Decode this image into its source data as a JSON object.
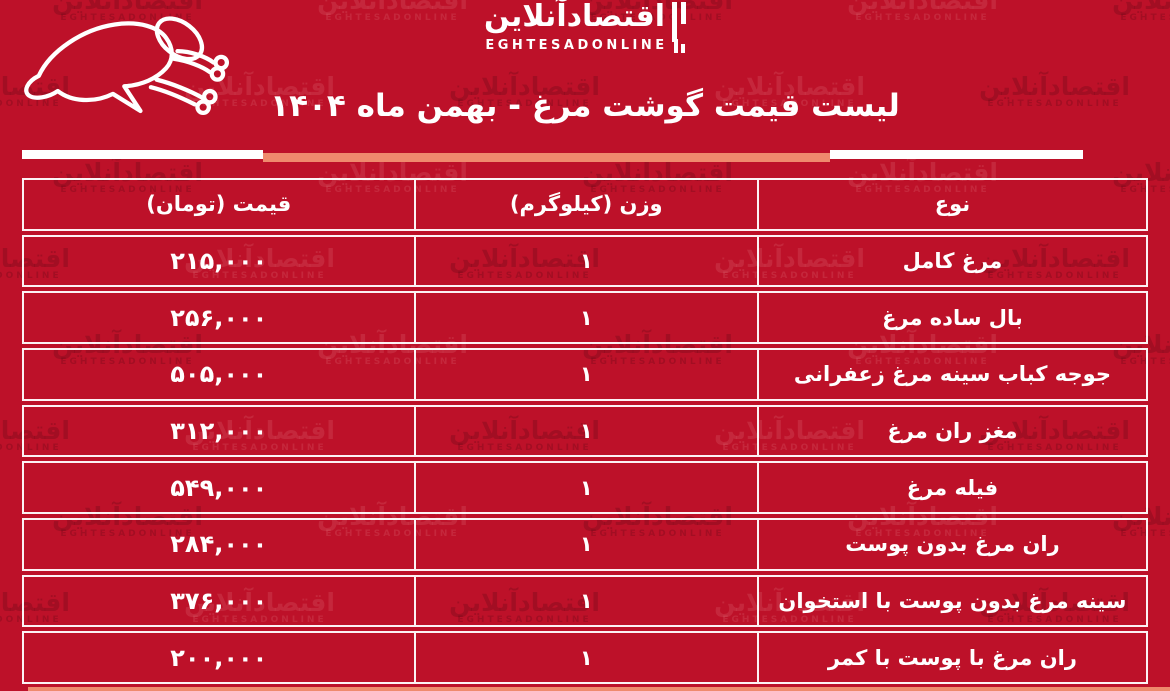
{
  "page": {
    "bg_color": "#bd1129",
    "accent_color": "#ef8a6d",
    "line_color": "#ffffff"
  },
  "logo": {
    "persian": "اقتصادآنلاین",
    "latin": "EGHTESADONLINE"
  },
  "watermark": {
    "persian": "اقتصادآنلاین",
    "latin": "EGHTESADONLINE"
  },
  "header": {
    "title": "لیست قیمت گوشت مرغ - بهمن ماه ۱۴۰۴"
  },
  "table": {
    "headers": {
      "type": "نوع",
      "weight": "وزن (کیلوگرم)",
      "price": "قیمت (تومان)"
    },
    "rows": [
      {
        "type": "مرغ کامل",
        "weight": "۱",
        "price": "۲۱۵,۰۰۰"
      },
      {
        "type": "بال ساده مرغ",
        "weight": "۱",
        "price": "۲۵۶,۰۰۰"
      },
      {
        "type": "جوجه کباب سینه مرغ زعفرانی",
        "weight": "۱",
        "price": "۵۰۵,۰۰۰"
      },
      {
        "type": "مغز ران مرغ",
        "weight": "۱",
        "price": "۳۱۲,۰۰۰"
      },
      {
        "type": "فیله مرغ",
        "weight": "۱",
        "price": "۵۴۹,۰۰۰"
      },
      {
        "type": "ران مرغ بدون پوست",
        "weight": "۱",
        "price": "۲۸۴,۰۰۰"
      },
      {
        "type": "سینه مرغ بدون پوست با استخوان",
        "weight": "۱",
        "price": "۳۷۶,۰۰۰"
      },
      {
        "type": "ران مرغ با پوست با کمر",
        "weight": "۱",
        "price": "۲۰۰,۰۰۰"
      }
    ]
  }
}
